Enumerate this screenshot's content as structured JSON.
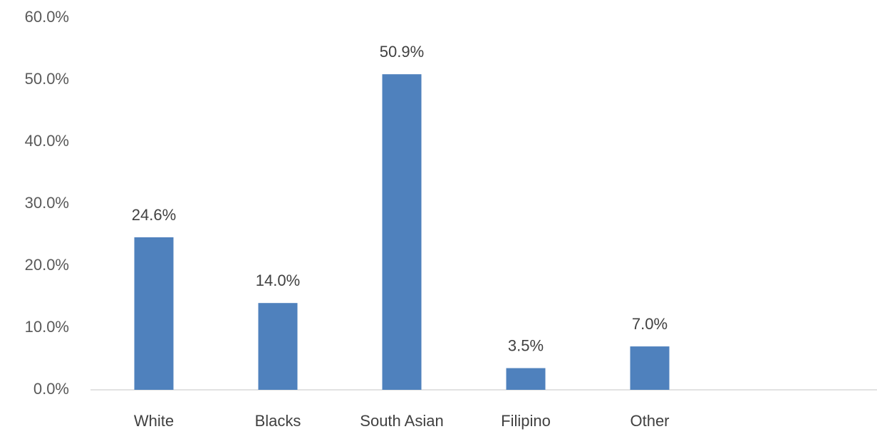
{
  "chart_data": {
    "type": "bar",
    "categories": [
      "White",
      "Blacks",
      "South Asian",
      "Filipino",
      "Other"
    ],
    "values": [
      24.6,
      14.0,
      50.9,
      3.5,
      7.0
    ],
    "value_labels": [
      "24.6%",
      "14.0%",
      "50.9%",
      "3.5%",
      "7.0%"
    ],
    "color": "#4f81bd",
    "ylim": [
      0,
      60
    ],
    "yticks": [
      {
        "value": 0,
        "label": "0.0%"
      },
      {
        "value": 10,
        "label": "10.0%"
      },
      {
        "value": 20,
        "label": "20.0%"
      },
      {
        "value": 30,
        "label": "30.0%"
      },
      {
        "value": 40,
        "label": "40.0%"
      },
      {
        "value": 50,
        "label": "50.0%"
      },
      {
        "value": 60,
        "label": "60.0%"
      }
    ],
    "grid": false
  }
}
